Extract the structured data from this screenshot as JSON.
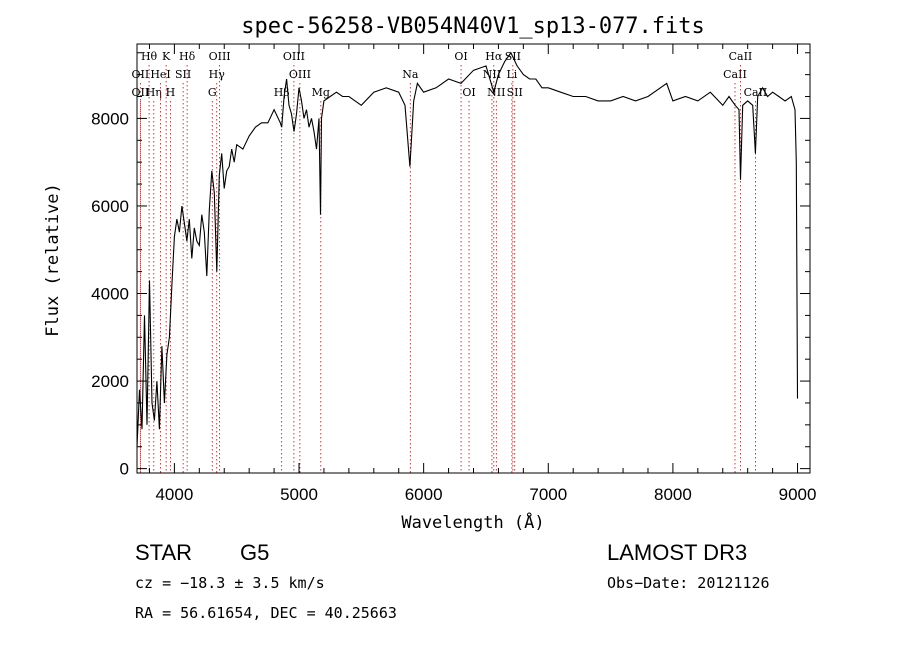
{
  "chart_data": {
    "type": "line",
    "title": "spec-56258-VB054N40V1_sp13-077.fits",
    "xlabel": "Wavelength (Å)",
    "ylabel": "Flux (relative)",
    "xlim": [
      3700,
      9100
    ],
    "ylim": [
      -100,
      9700
    ],
    "x_ticks": [
      4000,
      5000,
      6000,
      7000,
      8000,
      9000
    ],
    "x_tick_labels": [
      "4000",
      "5000",
      "6000",
      "7000",
      "8000",
      "9000"
    ],
    "y_ticks": [
      0,
      2000,
      4000,
      6000,
      8000
    ],
    "y_tick_labels": [
      "0",
      "2000",
      "4000",
      "6000",
      "8000"
    ],
    "series": [
      {
        "name": "flux",
        "x": [
          3700,
          3720,
          3740,
          3760,
          3780,
          3800,
          3820,
          3840,
          3860,
          3880,
          3900,
          3920,
          3940,
          3960,
          3980,
          4000,
          4020,
          4040,
          4060,
          4080,
          4100,
          4120,
          4140,
          4160,
          4180,
          4200,
          4220,
          4240,
          4260,
          4280,
          4300,
          4320,
          4340,
          4360,
          4380,
          4400,
          4420,
          4440,
          4460,
          4480,
          4500,
          4550,
          4600,
          4650,
          4700,
          4750,
          4800,
          4850,
          4861,
          4880,
          4900,
          4920,
          4940,
          4960,
          4980,
          5000,
          5020,
          5040,
          5060,
          5080,
          5100,
          5120,
          5140,
          5160,
          5172,
          5180,
          5200,
          5250,
          5300,
          5350,
          5400,
          5450,
          5500,
          5600,
          5700,
          5800,
          5850,
          5890,
          5920,
          5950,
          6000,
          6100,
          6200,
          6300,
          6400,
          6500,
          6563,
          6600,
          6650,
          6700,
          6750,
          6800,
          6850,
          6900,
          6950,
          7000,
          7100,
          7200,
          7300,
          7400,
          7500,
          7600,
          7700,
          7800,
          7900,
          7950,
          8000,
          8100,
          8200,
          8300,
          8400,
          8450,
          8500,
          8530,
          8542,
          8560,
          8600,
          8640,
          8662,
          8680,
          8720,
          8760,
          8800,
          8850,
          8900,
          8950,
          8980,
          8990,
          9000
        ],
        "y": [
          500,
          1800,
          900,
          3500,
          1000,
          4300,
          1500,
          1100,
          2000,
          900,
          2800,
          1500,
          2600,
          3000,
          4200,
          5300,
          5700,
          5400,
          6000,
          5600,
          5200,
          5700,
          4800,
          5500,
          5200,
          5100,
          5800,
          5400,
          4400,
          5900,
          6800,
          6300,
          4500,
          6700,
          7200,
          6400,
          6800,
          6900,
          7300,
          7000,
          7400,
          7300,
          7600,
          7800,
          7900,
          7900,
          8200,
          7900,
          7800,
          8500,
          8900,
          8300,
          8100,
          7700,
          8100,
          8700,
          8400,
          8000,
          8200,
          7800,
          8000,
          7700,
          7300,
          8000,
          5800,
          8000,
          8400,
          8500,
          8600,
          8500,
          8500,
          8400,
          8300,
          8600,
          8700,
          8600,
          8300,
          6900,
          8400,
          8800,
          8600,
          8700,
          8900,
          8800,
          9100,
          9200,
          8600,
          9000,
          9300,
          9500,
          9200,
          9000,
          8900,
          8900,
          8700,
          8700,
          8600,
          8500,
          8500,
          8400,
          8400,
          8500,
          8400,
          8500,
          8700,
          8800,
          8400,
          8500,
          8400,
          8600,
          8300,
          8500,
          8300,
          8200,
          6600,
          8300,
          8400,
          8300,
          7200,
          8500,
          8700,
          8500,
          8600,
          8500,
          8400,
          8500,
          8200,
          7000,
          1600
        ]
      }
    ],
    "line_markers": [
      {
        "label": "Hθ",
        "wl": 3797,
        "row": 1
      },
      {
        "label": "OII",
        "wl": 3727,
        "row": 2
      },
      {
        "label": "OII",
        "wl": 3727,
        "row": 3
      },
      {
        "label": "Hη",
        "wl": 3835,
        "row": 3
      },
      {
        "label": "HeI",
        "wl": 3889,
        "row": 2
      },
      {
        "label": "K",
        "wl": 3934,
        "row": 1
      },
      {
        "label": "H",
        "wl": 3968,
        "row": 3
      },
      {
        "label": "SII",
        "wl": 4070,
        "row": 2
      },
      {
        "label": "Hδ",
        "wl": 4102,
        "row": 1
      },
      {
        "label": "OIII",
        "wl": 4363,
        "row": 1
      },
      {
        "label": "Hγ",
        "wl": 4340,
        "row": 2
      },
      {
        "label": "G",
        "wl": 4304,
        "row": 3
      },
      {
        "label": "Hβ",
        "wl": 4861,
        "row": 3
      },
      {
        "label": "OIII",
        "wl": 4959,
        "row": 1
      },
      {
        "label": "OIII",
        "wl": 5007,
        "row": 2
      },
      {
        "label": "Mg",
        "wl": 5175,
        "row": 3
      },
      {
        "label": "Na",
        "wl": 5893,
        "row": 2
      },
      {
        "label": "OI",
        "wl": 6300,
        "row": 1
      },
      {
        "label": "OI",
        "wl": 6364,
        "row": 3
      },
      {
        "label": "Hα",
        "wl": 6563,
        "row": 1
      },
      {
        "label": "NII",
        "wl": 6548,
        "row": 2
      },
      {
        "label": "NII",
        "wl": 6583,
        "row": 3
      },
      {
        "label": "SII",
        "wl": 6716,
        "row": 1
      },
      {
        "label": "SII",
        "wl": 6731,
        "row": 3
      },
      {
        "label": "Li",
        "wl": 6708,
        "row": 2
      },
      {
        "label": "CaII",
        "wl": 8498,
        "row": 2
      },
      {
        "label": "CaII",
        "wl": 8542,
        "row": 1
      },
      {
        "label": "CaII",
        "wl": 8662,
        "row": 3
      }
    ],
    "marker_color": "#cc0000"
  },
  "info": {
    "object_class": "STAR",
    "subclass": "G5",
    "survey": "LAMOST DR3",
    "cz": "cz = −18.3 ± 3.5 km/s",
    "obs_date": "Obs−Date: 20121126",
    "coords": "RA =  56.61654, DEC =  40.25663"
  }
}
